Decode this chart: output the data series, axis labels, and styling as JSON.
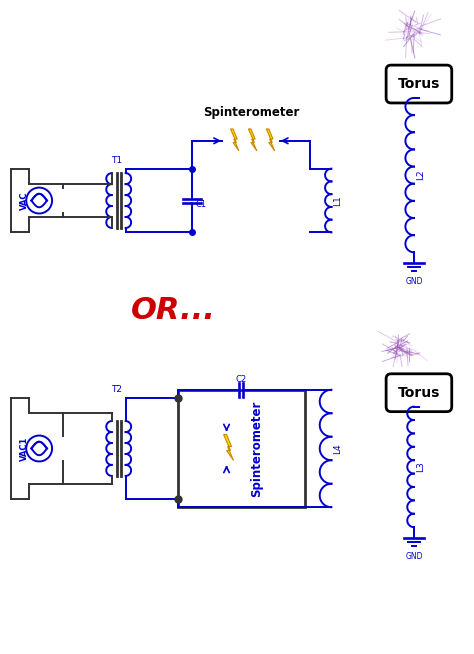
{
  "bg_color": "#ffffff",
  "circuit_color": "#0000cc",
  "dark_color": "#333333",
  "or_color": "#cc0000",
  "or_text": "OR...",
  "torus_label": "Torus",
  "d1": {
    "vac_label": "VAC",
    "t_label": "T1",
    "c_label": "C1",
    "l1_label": "L1",
    "l2_label": "L2",
    "gnd_label": "GND",
    "spinter_label": "Spinterometer"
  },
  "d2": {
    "vac_label": "VAC1",
    "t_label": "T2",
    "c_label": "C2",
    "l3_label": "L3",
    "l4_label": "L4",
    "gnd_label": "GND",
    "spinter_label": "Spinterometer"
  },
  "spark_color": "#9955BB",
  "lightning_color": "#FFD700",
  "lightning_edge": "#CC8800"
}
